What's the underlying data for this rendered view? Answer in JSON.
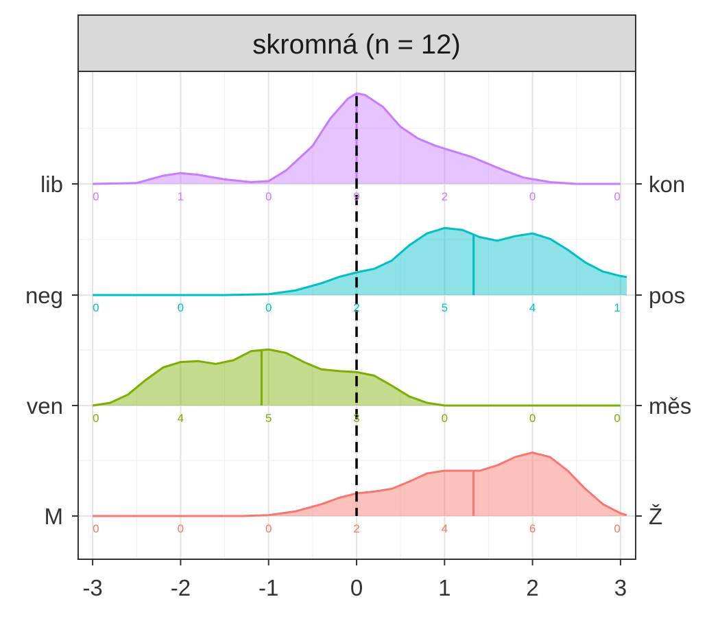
{
  "chart_data": {
    "type": "ridgeline",
    "title": "skromná (n = 12)",
    "xlim": [
      -3,
      3
    ],
    "x_ticks": [
      -3,
      -2,
      -1,
      0,
      1,
      2,
      3
    ],
    "x_tick_labels": [
      "-3",
      "-2",
      "-1",
      "0",
      "1",
      "2",
      "3"
    ],
    "x_minor_gridlines": [
      -2.5,
      -1.5,
      -0.5,
      0.5,
      1.5,
      2.5
    ],
    "grid": true,
    "reference_line": {
      "x": 0,
      "style": "dashed",
      "color": "#000000"
    },
    "count_positions": [
      -3,
      -2,
      -1,
      0,
      1,
      2,
      3
    ],
    "series": [
      {
        "left_label": "lib",
        "right_label": "kon",
        "color": "#C77CFF",
        "counts": [
          "0",
          "1",
          "0",
          "9",
          "2",
          "0",
          "0"
        ],
        "mean": 0.0,
        "density": [
          [
            -3.0,
            0.0
          ],
          [
            -2.5,
            0.01
          ],
          [
            -2.2,
            0.09
          ],
          [
            -2.0,
            0.12
          ],
          [
            -1.8,
            0.1
          ],
          [
            -1.5,
            0.05
          ],
          [
            -1.2,
            0.02
          ],
          [
            -1.0,
            0.03
          ],
          [
            -0.8,
            0.15
          ],
          [
            -0.5,
            0.42
          ],
          [
            -0.3,
            0.72
          ],
          [
            -0.1,
            0.94
          ],
          [
            0.0,
            1.0
          ],
          [
            0.1,
            0.98
          ],
          [
            0.3,
            0.85
          ],
          [
            0.5,
            0.63
          ],
          [
            0.7,
            0.5
          ],
          [
            0.9,
            0.42
          ],
          [
            1.1,
            0.36
          ],
          [
            1.3,
            0.3
          ],
          [
            1.5,
            0.22
          ],
          [
            1.7,
            0.14
          ],
          [
            1.9,
            0.07
          ],
          [
            2.2,
            0.02
          ],
          [
            2.5,
            0.0
          ],
          [
            3.0,
            0.0
          ]
        ]
      },
      {
        "left_label": "neg",
        "right_label": "pos",
        "color": "#00BFC4",
        "counts": [
          "0",
          "0",
          "0",
          "2",
          "5",
          "4",
          "1"
        ],
        "mean": 1.33,
        "density": [
          [
            -3.0,
            0.0
          ],
          [
            -1.5,
            0.0
          ],
          [
            -1.0,
            0.01
          ],
          [
            -0.7,
            0.05
          ],
          [
            -0.4,
            0.13
          ],
          [
            -0.2,
            0.2
          ],
          [
            0.0,
            0.25
          ],
          [
            0.2,
            0.29
          ],
          [
            0.4,
            0.38
          ],
          [
            0.6,
            0.55
          ],
          [
            0.8,
            0.68
          ],
          [
            1.0,
            0.74
          ],
          [
            1.2,
            0.72
          ],
          [
            1.4,
            0.64
          ],
          [
            1.6,
            0.6
          ],
          [
            1.8,
            0.65
          ],
          [
            2.0,
            0.68
          ],
          [
            2.2,
            0.62
          ],
          [
            2.4,
            0.5
          ],
          [
            2.6,
            0.36
          ],
          [
            2.8,
            0.26
          ],
          [
            3.0,
            0.21
          ],
          [
            3.07,
            0.2
          ]
        ]
      },
      {
        "left_label": "ven",
        "right_label": "měs",
        "color": "#7CAE00",
        "counts": [
          "0",
          "4",
          "5",
          "3",
          "0",
          "0",
          "0"
        ],
        "mean": -1.08,
        "density": [
          [
            -3.0,
            0.0
          ],
          [
            -2.8,
            0.03
          ],
          [
            -2.6,
            0.12
          ],
          [
            -2.4,
            0.28
          ],
          [
            -2.2,
            0.42
          ],
          [
            -2.0,
            0.48
          ],
          [
            -1.8,
            0.49
          ],
          [
            -1.6,
            0.46
          ],
          [
            -1.4,
            0.5
          ],
          [
            -1.2,
            0.6
          ],
          [
            -1.0,
            0.62
          ],
          [
            -0.8,
            0.58
          ],
          [
            -0.6,
            0.48
          ],
          [
            -0.4,
            0.4
          ],
          [
            -0.2,
            0.38
          ],
          [
            0.0,
            0.37
          ],
          [
            0.2,
            0.33
          ],
          [
            0.4,
            0.22
          ],
          [
            0.6,
            0.1
          ],
          [
            0.8,
            0.03
          ],
          [
            1.0,
            0.0
          ],
          [
            3.0,
            0.0
          ]
        ]
      },
      {
        "left_label": "M",
        "right_label": "Ž",
        "color": "#F8766D",
        "counts": [
          "0",
          "0",
          "0",
          "2",
          "4",
          "6",
          "0"
        ],
        "mean": 1.33,
        "density": [
          [
            -3.0,
            0.0
          ],
          [
            -1.3,
            0.0
          ],
          [
            -1.0,
            0.01
          ],
          [
            -0.7,
            0.05
          ],
          [
            -0.4,
            0.13
          ],
          [
            -0.2,
            0.2
          ],
          [
            0.0,
            0.25
          ],
          [
            0.2,
            0.27
          ],
          [
            0.4,
            0.3
          ],
          [
            0.6,
            0.38
          ],
          [
            0.8,
            0.47
          ],
          [
            1.0,
            0.5
          ],
          [
            1.2,
            0.5
          ],
          [
            1.4,
            0.5
          ],
          [
            1.6,
            0.56
          ],
          [
            1.8,
            0.65
          ],
          [
            2.0,
            0.7
          ],
          [
            2.2,
            0.65
          ],
          [
            2.4,
            0.5
          ],
          [
            2.6,
            0.3
          ],
          [
            2.8,
            0.13
          ],
          [
            3.0,
            0.03
          ],
          [
            3.07,
            0.01
          ]
        ]
      }
    ]
  }
}
